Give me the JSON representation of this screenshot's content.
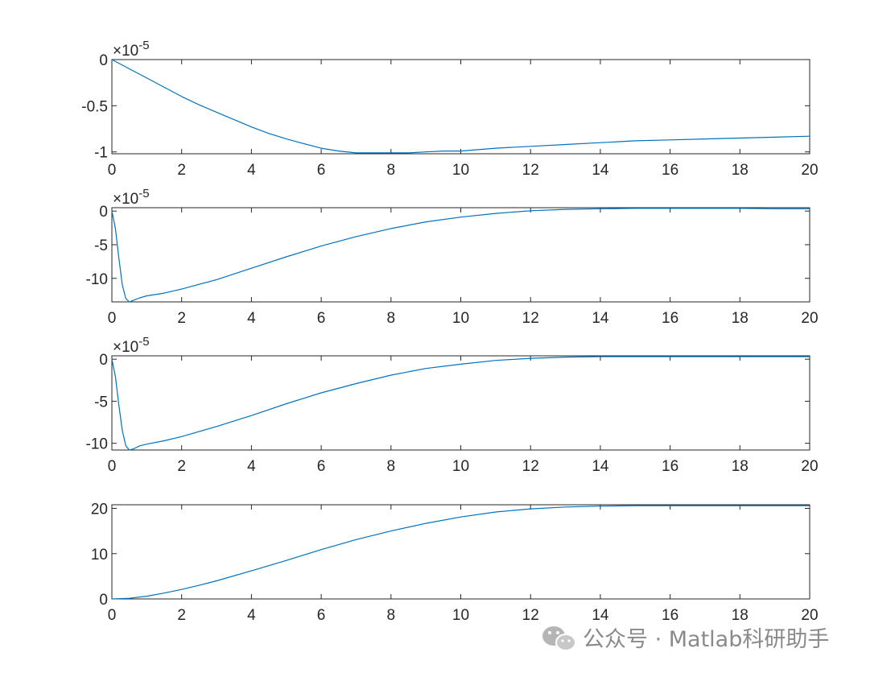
{
  "chart_data": [
    {
      "type": "line",
      "xlim": [
        0,
        20
      ],
      "ylim": [
        -1.02,
        0
      ],
      "exponent_label": "×10",
      "exponent_power": "-5",
      "xticks": [
        "0",
        "2",
        "4",
        "6",
        "8",
        "10",
        "12",
        "14",
        "16",
        "18",
        "20"
      ],
      "yticks": [
        {
          "value": 0,
          "label": "0"
        },
        {
          "value": -0.5,
          "label": "-0.5"
        },
        {
          "value": -1,
          "label": "-1"
        }
      ],
      "series": [
        {
          "color": "#0072BD",
          "x": [
            0,
            0.5,
            1,
            1.5,
            2,
            2.5,
            3,
            3.5,
            4,
            4.5,
            5,
            5.5,
            6,
            6.5,
            7,
            7.5,
            8,
            8.5,
            9,
            9.5,
            10,
            11,
            12,
            13,
            14,
            15,
            16,
            17,
            18,
            19,
            20
          ],
          "y": [
            0,
            -0.1,
            -0.2,
            -0.3,
            -0.4,
            -0.49,
            -0.57,
            -0.65,
            -0.73,
            -0.8,
            -0.86,
            -0.91,
            -0.96,
            -0.99,
            -1.01,
            -1.01,
            -1.01,
            -1.01,
            -1.0,
            -0.99,
            -0.99,
            -0.96,
            -0.94,
            -0.92,
            -0.9,
            -0.88,
            -0.87,
            -0.86,
            -0.85,
            -0.84,
            -0.83
          ]
        }
      ]
    },
    {
      "type": "line",
      "xlim": [
        0,
        20
      ],
      "ylim": [
        -13.5,
        0.5
      ],
      "exponent_label": "×10",
      "exponent_power": "-5",
      "xticks": [
        "0",
        "2",
        "4",
        "6",
        "8",
        "10",
        "12",
        "14",
        "16",
        "18",
        "20"
      ],
      "yticks": [
        {
          "value": 0,
          "label": "0"
        },
        {
          "value": -5,
          "label": "-5"
        },
        {
          "value": -10,
          "label": "-10"
        }
      ],
      "series": [
        {
          "color": "#0072BD",
          "x": [
            0,
            0.1,
            0.2,
            0.3,
            0.4,
            0.5,
            0.6,
            0.8,
            1,
            1.5,
            2,
            3,
            4,
            5,
            6,
            7,
            8,
            9,
            10,
            11,
            12,
            13,
            14,
            15,
            16,
            17,
            18,
            19,
            20
          ],
          "y": [
            0,
            -2.5,
            -7,
            -11,
            -13,
            -13.5,
            -13.3,
            -12.9,
            -12.6,
            -12.2,
            -11.6,
            -10.2,
            -8.5,
            -6.8,
            -5.2,
            -3.8,
            -2.6,
            -1.6,
            -0.9,
            -0.35,
            0.05,
            0.25,
            0.35,
            0.4,
            0.4,
            0.4,
            0.4,
            0.35,
            0.35
          ]
        }
      ]
    },
    {
      "type": "line",
      "xlim": [
        0,
        20
      ],
      "ylim": [
        -10.8,
        0.4
      ],
      "exponent_label": "×10",
      "exponent_power": "-5",
      "xticks": [
        "0",
        "2",
        "4",
        "6",
        "8",
        "10",
        "12",
        "14",
        "16",
        "18",
        "20"
      ],
      "yticks": [
        {
          "value": 0,
          "label": "0"
        },
        {
          "value": -5,
          "label": "-5"
        },
        {
          "value": -10,
          "label": "-10"
        }
      ],
      "series": [
        {
          "color": "#0072BD",
          "x": [
            0,
            0.1,
            0.2,
            0.3,
            0.4,
            0.5,
            0.6,
            0.8,
            1,
            1.5,
            2,
            3,
            4,
            5,
            6,
            7,
            8,
            9,
            10,
            11,
            12,
            13,
            14,
            15,
            16,
            17,
            18,
            19,
            20
          ],
          "y": [
            0,
            -2,
            -5.5,
            -8.5,
            -10.3,
            -10.8,
            -10.7,
            -10.3,
            -10.1,
            -9.7,
            -9.2,
            -8.0,
            -6.7,
            -5.3,
            -4.0,
            -2.9,
            -1.9,
            -1.1,
            -0.6,
            -0.15,
            0.1,
            0.25,
            0.3,
            0.3,
            0.3,
            0.3,
            0.3,
            0.3,
            0.3
          ]
        }
      ]
    },
    {
      "type": "line",
      "xlim": [
        0,
        20
      ],
      "ylim": [
        0,
        20.8
      ],
      "xticks": [
        "0",
        "2",
        "4",
        "6",
        "8",
        "10",
        "12",
        "14",
        "16",
        "18",
        "20"
      ],
      "yticks": [
        {
          "value": 0,
          "label": "0"
        },
        {
          "value": 10,
          "label": "10"
        },
        {
          "value": 20,
          "label": "20"
        }
      ],
      "series": [
        {
          "color": "#0072BD",
          "x": [
            0,
            0.5,
            1,
            1.5,
            2,
            2.5,
            3,
            4,
            5,
            6,
            7,
            8,
            9,
            10,
            11,
            12,
            13,
            14,
            15,
            16,
            17,
            18,
            19,
            20
          ],
          "y": [
            0,
            0.15,
            0.6,
            1.3,
            2.1,
            3.0,
            4.0,
            6.2,
            8.5,
            10.9,
            13.1,
            15.0,
            16.7,
            18.1,
            19.2,
            19.9,
            20.3,
            20.5,
            20.6,
            20.6,
            20.6,
            20.6,
            20.6,
            20.6
          ]
        }
      ]
    }
  ],
  "watermark": {
    "text": "公众号 · Matlab科研助手",
    "icon": "wechat-icon"
  }
}
